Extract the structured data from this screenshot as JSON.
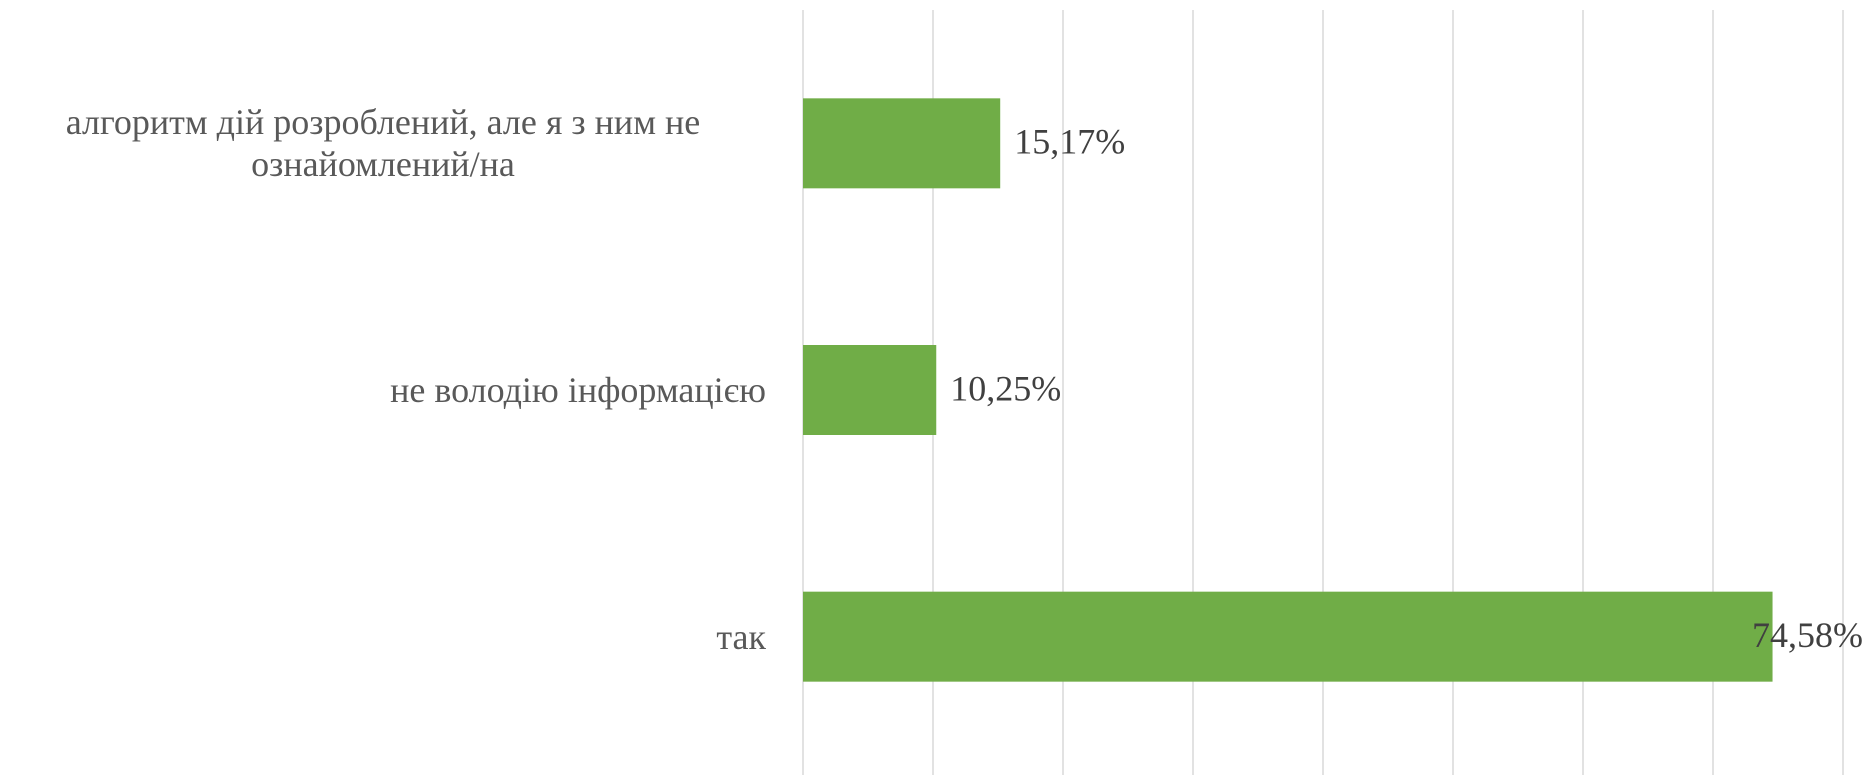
{
  "chart_data": {
    "type": "bar",
    "orientation": "horizontal",
    "categories": [
      "алгоритм дій розроблений, але я з ним не ознайомлений/на",
      "не володію інформацією",
      "так"
    ],
    "values": [
      15.17,
      10.25,
      74.58
    ],
    "value_labels": [
      "15,17%",
      "10,25%",
      "74,58%"
    ],
    "color": "#70ad47",
    "xlim": [
      0,
      80
    ],
    "xticks": [
      0,
      10,
      20,
      30,
      40,
      50,
      60,
      70,
      80
    ],
    "grid": true
  }
}
